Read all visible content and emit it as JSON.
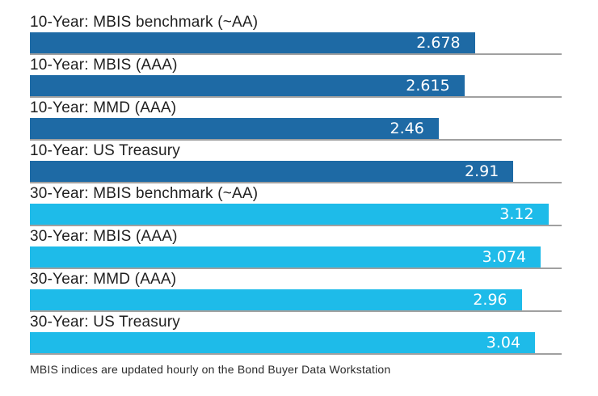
{
  "chart_data": {
    "type": "bar",
    "orientation": "horizontal",
    "xlim": [
      0,
      3.2
    ],
    "grid": "gray baseline under each bar, no axis ticks",
    "rows": [
      {
        "label": "10-Year: MBIS benchmark (~AA)",
        "value": 2.678,
        "display": "2.678",
        "group": "10-Year",
        "color": "#1e6aa5"
      },
      {
        "label": "10-Year: MBIS (AAA)",
        "value": 2.615,
        "display": "2.615",
        "group": "10-Year",
        "color": "#1e6aa5"
      },
      {
        "label": "10-Year: MMD (AAA)",
        "value": 2.46,
        "display": "2.46",
        "group": "10-Year",
        "color": "#1e6aa5"
      },
      {
        "label": "10-Year: US Treasury",
        "value": 2.91,
        "display": "2.91",
        "group": "10-Year",
        "color": "#1e6aa5"
      },
      {
        "label": "30-Year: MBIS benchmark (~AA)",
        "value": 3.12,
        "display": "3.12",
        "group": "30-Year",
        "color": "#1ebbe9"
      },
      {
        "label": "30-Year: MBIS (AAA)",
        "value": 3.074,
        "display": "3.074",
        "group": "30-Year",
        "color": "#1ebbe9"
      },
      {
        "label": "30-Year: MMD (AAA)",
        "value": 2.96,
        "display": "2.96",
        "group": "30-Year",
        "color": "#1ebbe9"
      },
      {
        "label": "30-Year: US Treasury",
        "value": 3.04,
        "display": "3.04",
        "group": "30-Year",
        "color": "#1ebbe9"
      }
    ],
    "footnote": "MBIS indices are updated hourly on the Bond Buyer Data Workstation"
  },
  "colors": {
    "ten_year_bar": "#1e6aa5",
    "thirty_year_bar": "#1ebbe9",
    "baseline": "#a0a0a0",
    "value_text": "#ffffff",
    "label_text": "#1f1f1f",
    "background": "#ffffff"
  }
}
